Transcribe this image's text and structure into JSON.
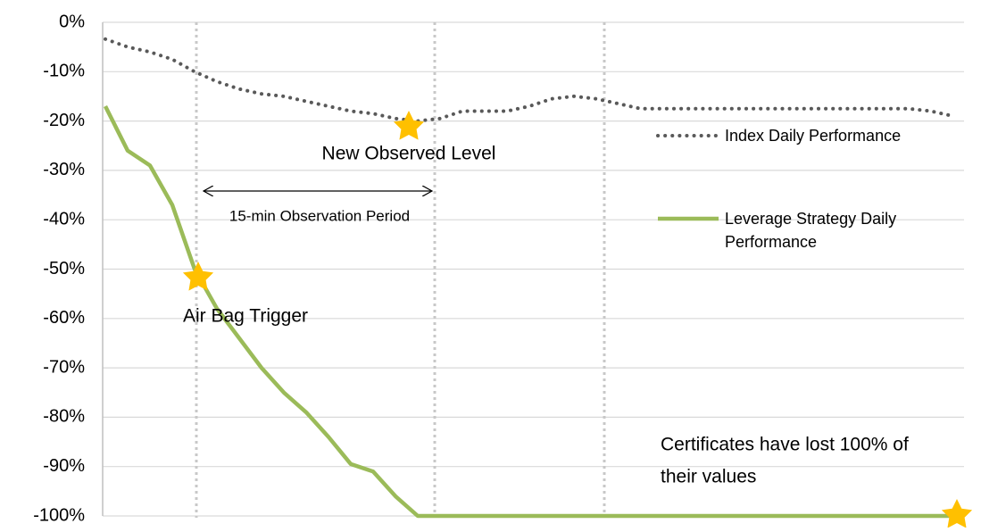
{
  "chart_data": {
    "type": "line",
    "categories": [
      null,
      null,
      null,
      null,
      null,
      null,
      null,
      null,
      null,
      null,
      null,
      null,
      null,
      null,
      null,
      null,
      null,
      null,
      null,
      null,
      null,
      null,
      null,
      null,
      null,
      null,
      null,
      null,
      null,
      null,
      null,
      null,
      null,
      null,
      null,
      null,
      null,
      null,
      null
    ],
    "series": [
      {
        "name": "Index Daily Performance",
        "color": "#595959",
        "style": "dotted",
        "values": [
          -3.4,
          -5,
          -6,
          -7.5,
          -10,
          -12,
          -13.5,
          -14.5,
          -15,
          -16,
          -17,
          -18,
          -18.5,
          -19.5,
          -20,
          -19.5,
          -18,
          -18,
          -18,
          -17,
          -15.5,
          -15,
          -15.5,
          -16.5,
          -17.5,
          -17.5,
          -17.5,
          -17.5,
          -17.5,
          -17.5,
          -17.5,
          -17.5,
          -17.5,
          -17.5,
          -17.5,
          -17.5,
          -17.5,
          -18,
          -19
        ]
      },
      {
        "name": "Leverage Strategy Daily Performance",
        "color": "#9bbb59",
        "style": "solid",
        "values": [
          -17,
          -26,
          -29,
          -37,
          -50,
          -58,
          -64,
          -70,
          -75,
          -79,
          -84,
          -89.5,
          -91,
          -96,
          -100,
          -100,
          -100,
          -100,
          -100,
          -100,
          -100,
          -100,
          -100,
          -100,
          -100,
          -100,
          -100,
          -100,
          -100,
          -100,
          -100,
          -100,
          -100,
          -100,
          -100,
          -100,
          -100,
          -100,
          -100
        ]
      }
    ],
    "ylim": [
      -100,
      0
    ],
    "yticks": [
      {
        "value": 0,
        "label": "0%"
      },
      {
        "value": -10,
        "label": "-10%"
      },
      {
        "value": -20,
        "label": "-20%"
      },
      {
        "value": -30,
        "label": "-30%"
      },
      {
        "value": -40,
        "label": "-40%"
      },
      {
        "value": -50,
        "label": "-50%"
      },
      {
        "value": -60,
        "label": "-60%"
      },
      {
        "value": -70,
        "label": "-70%"
      },
      {
        "value": -80,
        "label": "-80%"
      },
      {
        "value": -90,
        "label": "-90%"
      },
      {
        "value": -100,
        "label": "-100%"
      }
    ],
    "grid": true,
    "annotations": [
      "New Observed Level",
      "15-min Observation Period",
      "Air Bag Trigger",
      "Certificates have lost 100% of",
      "their values"
    ]
  }
}
